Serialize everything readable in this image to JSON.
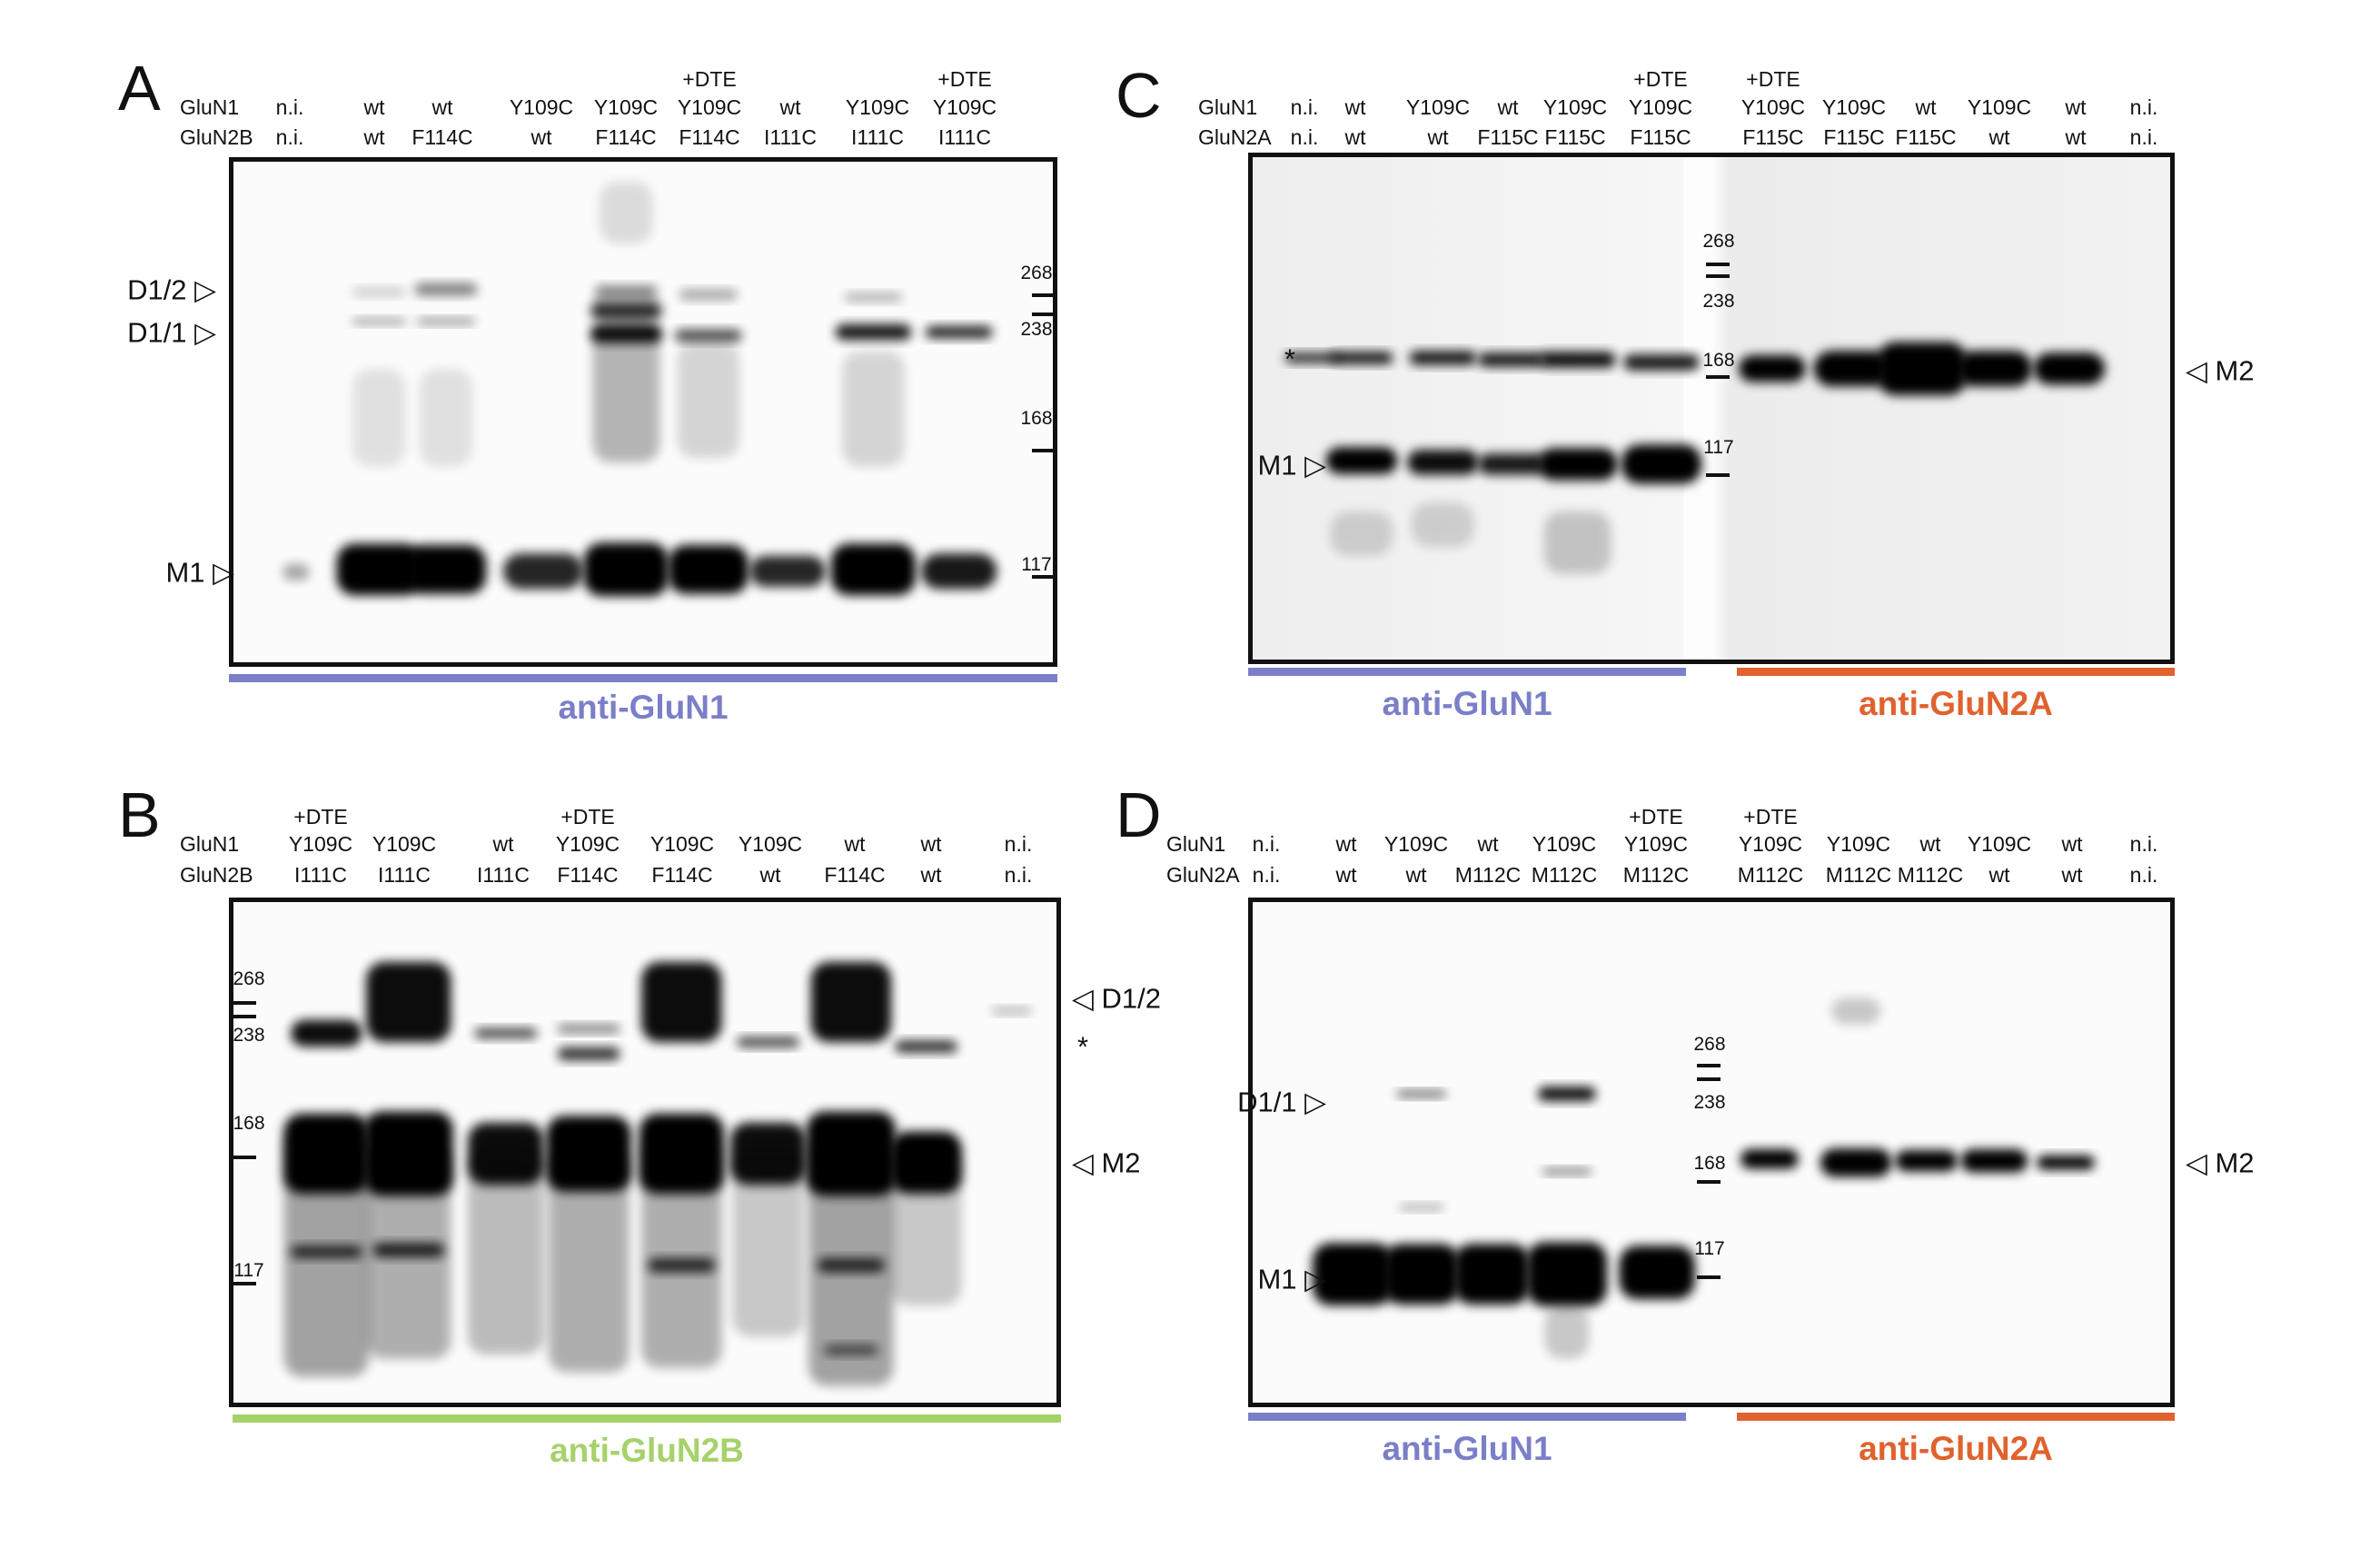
{
  "colors": {
    "anti_GluN1": "#7b7fc8",
    "anti_GluN2B": "#a6d26a",
    "anti_GluN2A": "#e0622e"
  },
  "panels": {
    "A": {
      "letter": "A",
      "row_labels": {
        "glun1": "GluN1",
        "glun2": "GluN2B"
      },
      "lanes": [
        {
          "dte": "",
          "glun1": "n.i.",
          "glun2": "n.i."
        },
        {
          "dte": "",
          "glun1": "wt",
          "glun2": "wt"
        },
        {
          "dte": "",
          "glun1": "wt",
          "glun2": "F114C"
        },
        {
          "dte": "",
          "glun1": "Y109C",
          "glun2": "wt"
        },
        {
          "dte": "",
          "glun1": "Y109C",
          "glun2": "F114C"
        },
        {
          "dte": "+DTE",
          "glun1": "Y109C",
          "glun2": "F114C"
        },
        {
          "dte": "",
          "glun1": "wt",
          "glun2": "I111C"
        },
        {
          "dte": "",
          "glun1": "Y109C",
          "glun2": "I111C"
        },
        {
          "dte": "+DTE",
          "glun1": "Y109C",
          "glun2": "I111C"
        }
      ],
      "markers": [
        "268",
        "238",
        "168",
        "117"
      ],
      "band_labels": [
        "D1/2 ▷",
        "D1/1 ▷",
        "M1 ▷"
      ],
      "antibodies": [
        "anti-GluN1"
      ]
    },
    "B": {
      "letter": "B",
      "row_labels": {
        "glun1": "GluN1",
        "glun2": "GluN2B"
      },
      "lanes": [
        {
          "dte": "+DTE",
          "glun1": "Y109C",
          "glun2": "I111C"
        },
        {
          "dte": "",
          "glun1": "Y109C",
          "glun2": "I111C"
        },
        {
          "dte": "",
          "glun1": "wt",
          "glun2": "I111C"
        },
        {
          "dte": "+DTE",
          "glun1": "Y109C",
          "glun2": "F114C"
        },
        {
          "dte": "",
          "glun1": "Y109C",
          "glun2": "F114C"
        },
        {
          "dte": "",
          "glun1": "Y109C",
          "glun2": "wt"
        },
        {
          "dte": "",
          "glun1": "wt",
          "glun2": "F114C"
        },
        {
          "dte": "",
          "glun1": "wt",
          "glun2": "wt"
        },
        {
          "dte": "",
          "glun1": "n.i.",
          "glun2": "n.i."
        }
      ],
      "markers": [
        "268",
        "238",
        "168",
        "117"
      ],
      "band_labels": [
        "◁ D1/2",
        "*",
        "◁ M2"
      ],
      "antibodies": [
        "anti-GluN2B"
      ]
    },
    "C": {
      "letter": "C",
      "row_labels": {
        "glun1": "GluN1",
        "glun2": "GluN2A"
      },
      "lanes": [
        {
          "dte": "",
          "glun1": "n.i.",
          "glun2": "n.i."
        },
        {
          "dte": "",
          "glun1": "wt",
          "glun2": "wt"
        },
        {
          "dte": "",
          "glun1": "Y109C",
          "glun2": "wt"
        },
        {
          "dte": "",
          "glun1": "wt",
          "glun2": "F115C"
        },
        {
          "dte": "",
          "glun1": "Y109C",
          "glun2": "F115C"
        },
        {
          "dte": "+DTE",
          "glun1": "Y109C",
          "glun2": "F115C"
        },
        {
          "dte": "+DTE",
          "glun1": "Y109C",
          "glun2": "F115C"
        },
        {
          "dte": "",
          "glun1": "Y109C",
          "glun2": "F115C"
        },
        {
          "dte": "",
          "glun1": "wt",
          "glun2": "F115C"
        },
        {
          "dte": "",
          "glun1": "Y109C",
          "glun2": "wt"
        },
        {
          "dte": "",
          "glun1": "wt",
          "glun2": "wt"
        },
        {
          "dte": "",
          "glun1": "n.i.",
          "glun2": "n.i."
        }
      ],
      "markers": [
        "268",
        "238",
        "168",
        "117"
      ],
      "band_labels": [
        "*",
        "M1 ▷",
        "◁ M2"
      ],
      "antibodies": [
        "anti-GluN1",
        "anti-GluN2A"
      ]
    },
    "D": {
      "letter": "D",
      "row_labels": {
        "glun1": "GluN1",
        "glun2": "GluN2A"
      },
      "lanes": [
        {
          "dte": "",
          "glun1": "n.i.",
          "glun2": "n.i."
        },
        {
          "dte": "",
          "glun1": "wt",
          "glun2": "wt"
        },
        {
          "dte": "",
          "glun1": "Y109C",
          "glun2": "wt"
        },
        {
          "dte": "",
          "glun1": "wt",
          "glun2": "M112C"
        },
        {
          "dte": "",
          "glun1": "Y109C",
          "glun2": "M112C"
        },
        {
          "dte": "+DTE",
          "glun1": "Y109C",
          "glun2": "M112C"
        },
        {
          "dte": "+DTE",
          "glun1": "Y109C",
          "glun2": "M112C"
        },
        {
          "dte": "",
          "glun1": "Y109C",
          "glun2": "M112C"
        },
        {
          "dte": "",
          "glun1": "wt",
          "glun2": "M112C"
        },
        {
          "dte": "",
          "glun1": "Y109C",
          "glun2": "wt"
        },
        {
          "dte": "",
          "glun1": "wt",
          "glun2": "wt"
        },
        {
          "dte": "",
          "glun1": "n.i.",
          "glun2": "n.i."
        }
      ],
      "markers": [
        "268",
        "238",
        "168",
        "117"
      ],
      "band_labels": [
        "D1/1 ▷",
        "M1 ▷",
        "◁ M2"
      ],
      "antibodies": [
        "anti-GluN1",
        "anti-GluN2A"
      ]
    }
  }
}
